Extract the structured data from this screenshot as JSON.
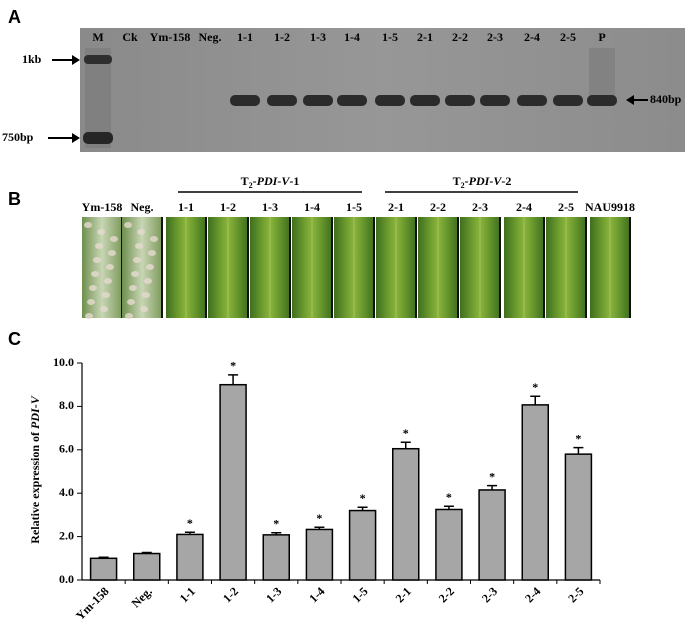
{
  "panel_a": {
    "label": "A",
    "lanes": [
      "M",
      "Ck",
      "Ym-158",
      "Neg.",
      "1-1",
      "1-2",
      "1-3",
      "1-4",
      "1-5",
      "2-1",
      "2-2",
      "2-3",
      "2-4",
      "2-5",
      "P"
    ],
    "marker_top": "1kb",
    "marker_bottom": "750bp",
    "band_size": "840bp"
  },
  "panel_b": {
    "label": "B",
    "group1": {
      "prefix": "T",
      "sub": "2",
      "italic": "-PDI-V",
      "suffix": "-1"
    },
    "group2": {
      "prefix": "T",
      "sub": "2",
      "italic": "-PDI-V",
      "suffix": "-2"
    },
    "samples": [
      "Ym-158",
      "Neg.",
      "1-1",
      "1-2",
      "1-3",
      "1-4",
      "1-5",
      "2-1",
      "2-2",
      "2-3",
      "2-4",
      "2-5",
      "NAU9918"
    ]
  },
  "chart_data": {
    "type": "bar",
    "label": "C",
    "y_label": {
      "text": "Relative expression of ",
      "italic": "PDI-V"
    },
    "categories": [
      "Ym-158",
      "Neg.",
      "1-1",
      "1-2",
      "1-3",
      "1-4",
      "1-5",
      "2-1",
      "2-2",
      "2-3",
      "2-4",
      "2-5"
    ],
    "values": [
      1.0,
      1.22,
      2.1,
      9.0,
      2.08,
      2.33,
      3.2,
      6.05,
      3.25,
      4.15,
      8.07,
      5.8
    ],
    "errors": [
      0.05,
      0.05,
      0.1,
      0.45,
      0.1,
      0.1,
      0.15,
      0.3,
      0.15,
      0.2,
      0.4,
      0.3
    ],
    "significance": [
      null,
      null,
      "*",
      "*",
      "*",
      "*",
      "*",
      "*",
      "*",
      "*",
      "*",
      "*"
    ],
    "color": "#a6a6a6",
    "ylim": [
      0,
      10
    ],
    "yticks": [
      {
        "value": 0,
        "label": "0.0"
      },
      {
        "value": 2,
        "label": "2.0"
      },
      {
        "value": 4,
        "label": "4.0"
      },
      {
        "value": 6,
        "label": "6.0"
      },
      {
        "value": 8,
        "label": "8.0"
      },
      {
        "value": 10,
        "label": "10.0"
      }
    ]
  }
}
